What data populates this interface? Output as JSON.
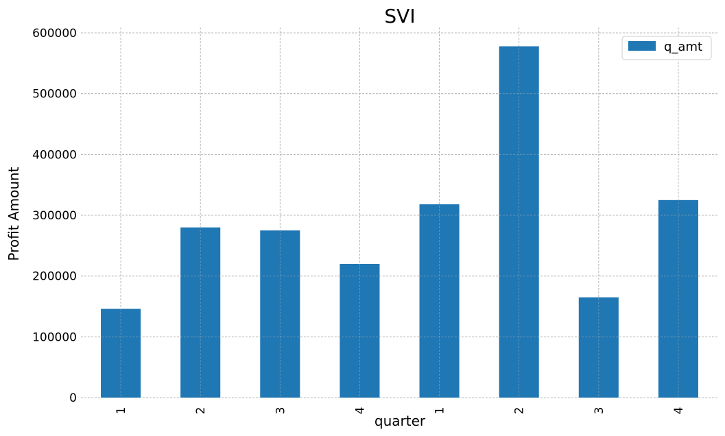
{
  "chart_data": {
    "type": "bar",
    "title": "SVI",
    "xlabel": "quarter",
    "ylabel": "Profit Amount",
    "categories": [
      "1",
      "2",
      "3",
      "4",
      "1",
      "2",
      "3",
      "4"
    ],
    "series": [
      {
        "name": "q_amt",
        "values": [
          146000,
          280000,
          275000,
          220000,
          318000,
          578000,
          165000,
          325000
        ]
      }
    ],
    "ylim": [
      0,
      600000
    ],
    "yticks": [
      "0",
      "100000",
      "200000",
      "300000",
      "400000",
      "500000",
      "600000"
    ],
    "grid": true,
    "legend_position": "top-right",
    "colors": {
      "bar": "#1f77b4",
      "grid": "#b0b0b0"
    }
  }
}
